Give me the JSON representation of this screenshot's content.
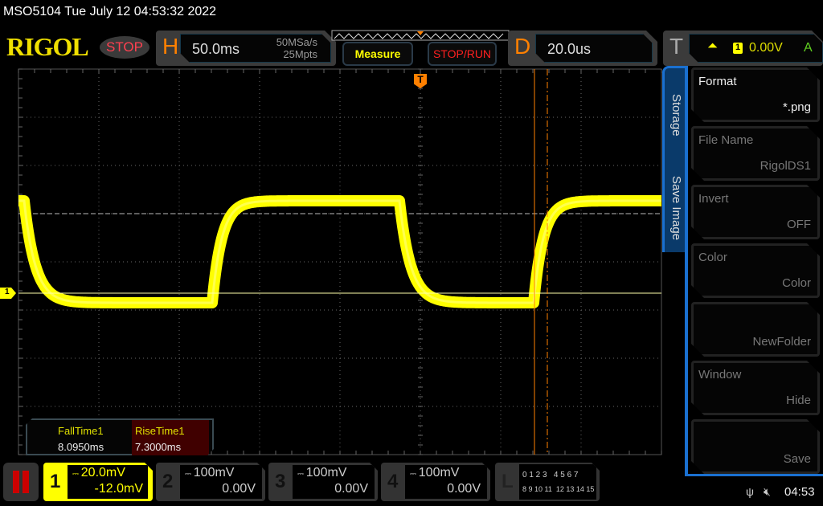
{
  "title": "MSO5104  Tue July 12 04:53:32 2022",
  "logo": "RIGOL",
  "run_state": "STOP",
  "horizontal": {
    "letter": "H",
    "timebase": "50.0ms",
    "sample_rate": "50MSa/s",
    "memory_depth": "25Mpts"
  },
  "buttons": {
    "measure": "Measure",
    "stop_run": "STOP/RUN"
  },
  "delay": {
    "letter": "D",
    "value": "20.0us"
  },
  "trigger": {
    "letter": "T",
    "source": "1",
    "level": "0.00V",
    "mode": "A",
    "marker": "T"
  },
  "measurements": [
    {
      "label": "FallTime1",
      "value": "8.0950ms"
    },
    {
      "label": "RiseTime1",
      "value": "7.3000ms"
    }
  ],
  "side_tabs": [
    "Storage",
    "Save Image"
  ],
  "menu": [
    {
      "title": "Format",
      "value": "*.png",
      "enabled": true
    },
    {
      "title": "File Name",
      "value": "RigolDS1",
      "enabled": false
    },
    {
      "title": "Invert",
      "value": "OFF",
      "enabled": false
    },
    {
      "title": "Color",
      "value": "Color",
      "enabled": false
    },
    {
      "title": "",
      "value": "NewFolder",
      "enabled": false
    },
    {
      "title": "Window",
      "value": "Hide",
      "enabled": false
    },
    {
      "title": "",
      "value": "Save",
      "enabled": false
    }
  ],
  "channels": [
    {
      "num": "1",
      "scale": "20.0mV",
      "offset": "-12.0mV",
      "active": true
    },
    {
      "num": "2",
      "scale": "100mV",
      "offset": "0.00V",
      "active": false
    },
    {
      "num": "3",
      "scale": "100mV",
      "offset": "0.00V",
      "active": false
    },
    {
      "num": "4",
      "scale": "100mV",
      "offset": "0.00V",
      "active": false
    }
  ],
  "logic": {
    "letter": "L",
    "row1": "0 1 2 3   4 5 6 7",
    "row2": "8 9 10 11  12 13 14 15"
  },
  "ch1_marker": "1",
  "status": {
    "time": "04:53"
  },
  "colors": {
    "ch1": "#ffff00",
    "accent": "#ff8000",
    "menu_blue": "#1a70d0"
  }
}
